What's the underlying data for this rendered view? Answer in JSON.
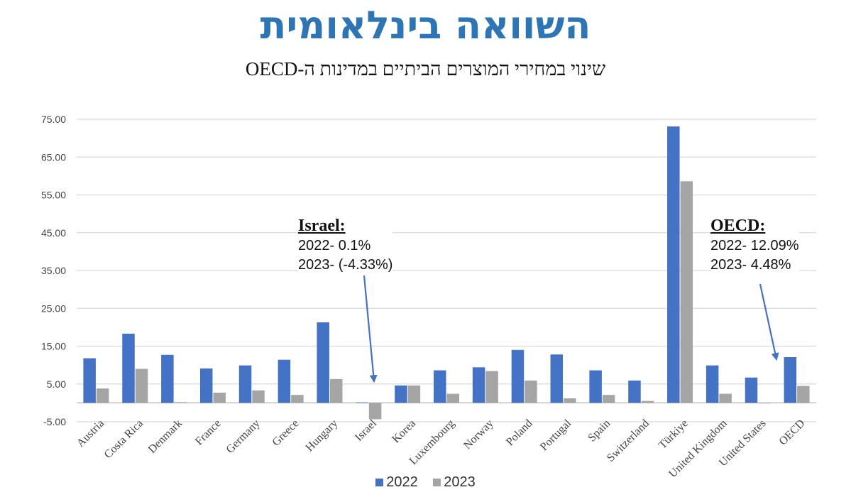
{
  "header": {
    "title": "השוואה בינלאומית",
    "subtitle": "שינוי במחירי המוצרים הביתיים במדינות ה-OECD"
  },
  "annotations": {
    "israel": {
      "heading": "Israel:",
      "line1": "2022- 0.1%",
      "line2": "2023- (-4.33%)"
    },
    "oecd": {
      "heading": "OECD:",
      "line1": "2022- 12.09%",
      "line2": "2023- 4.48%"
    }
  },
  "colors": {
    "s2022": "#4472c4",
    "s2023": "#a5a5a5",
    "title": "#2e75b6",
    "arrow": "#4472c4"
  },
  "chart_data": {
    "type": "bar",
    "categories": [
      "Austria",
      "Costa Rica",
      "Denmark",
      "France",
      "Germany",
      "Greece",
      "Hungary",
      "Israel",
      "Korea",
      "Luxembourg",
      "Norway",
      "Poland",
      "Portugal",
      "Spain",
      "Switzerland",
      "Türkiye",
      "United Kingdom",
      "United States",
      "OECD"
    ],
    "series": [
      {
        "name": "2022",
        "values": [
          11.8,
          18.3,
          12.7,
          9.1,
          9.9,
          11.4,
          21.3,
          0.1,
          4.6,
          8.6,
          9.4,
          14.0,
          12.8,
          8.6,
          5.9,
          73.1,
          9.9,
          6.7,
          12.09
        ]
      },
      {
        "name": "2023",
        "values": [
          3.8,
          9.0,
          0.2,
          2.7,
          3.3,
          2.1,
          6.3,
          -4.33,
          4.6,
          2.4,
          8.4,
          5.9,
          1.2,
          2.1,
          0.5,
          58.6,
          2.4,
          0.0,
          4.48
        ]
      }
    ],
    "yticks": [
      "75.00",
      "65.00",
      "55.00",
      "45.00",
      "35.00",
      "25.00",
      "15.00",
      "5.00",
      "-5.00"
    ],
    "ylim": [
      -5,
      75
    ],
    "grid": true,
    "legend": "bottom"
  }
}
